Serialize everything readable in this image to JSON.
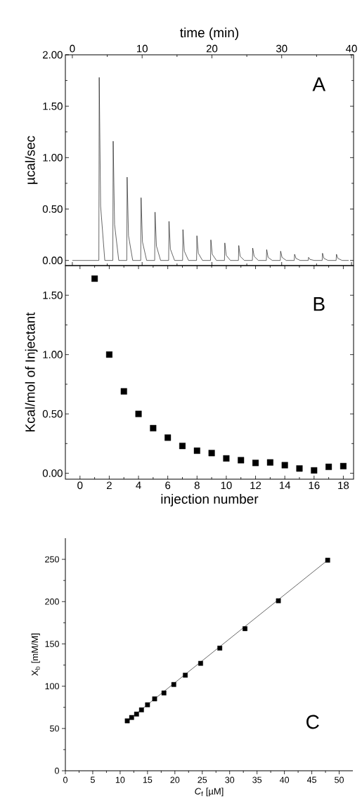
{
  "chart_data": [
    {
      "type": "line",
      "xlabel": "time (min)",
      "ylabel": "µcal/sec",
      "annotations": [
        "A"
      ],
      "color": "#000000",
      "marker": "none",
      "x": [
        0,
        3.8,
        3.85,
        4.05,
        4.65,
        5.8,
        5.85,
        6.05,
        6.65,
        7.8,
        7.85,
        8.05,
        8.65,
        9.8,
        9.85,
        10.05,
        10.65,
        11.8,
        11.85,
        12.05,
        12.65,
        13.8,
        13.85,
        14.05,
        14.65,
        15.8,
        15.85,
        16.05,
        16.65,
        17.8,
        17.85,
        18.05,
        18.65,
        19.8,
        19.85,
        20.05,
        20.65,
        21.8,
        21.85,
        22.05,
        22.65,
        23.8,
        23.85,
        24.05,
        24.65,
        25.8,
        25.85,
        26.05,
        26.65,
        27.8,
        27.85,
        28.05,
        28.65,
        29.8,
        29.85,
        30.05,
        30.65,
        31.8,
        31.85,
        32.05,
        32.65,
        33.8,
        33.85,
        34.05,
        34.65,
        35.8,
        35.85,
        36.05,
        36.65,
        37.8,
        37.85,
        38.05,
        38.65,
        39.6
      ],
      "values": [
        0,
        0,
        1.78,
        0.53,
        0,
        0,
        1.16,
        0.35,
        0,
        0,
        0.81,
        0.24,
        0,
        0,
        0.61,
        0.18,
        0,
        0,
        0.47,
        0.14,
        0,
        0,
        0.38,
        0.11,
        0,
        0,
        0.3,
        0.09,
        0,
        0,
        0.24,
        0.07,
        0,
        0,
        0.2,
        0.06,
        0,
        0,
        0.17,
        0.05,
        0,
        0,
        0.145,
        0.04,
        0,
        0,
        0.12,
        0.04,
        0,
        0,
        0.105,
        0.03,
        0,
        0,
        0.09,
        0.03,
        0,
        0,
        0.06,
        0.02,
        0,
        0,
        0.03,
        0.01,
        0,
        0,
        0.07,
        0.02,
        0,
        0,
        0.06,
        0.02,
        0,
        0
      ],
      "xlim": [
        -1,
        40.3
      ],
      "ylim": [
        -0.05,
        2.0
      ],
      "xticks": [
        0,
        10,
        20,
        30,
        40
      ],
      "yticks": [
        {
          "value": 0,
          "label": "0.00"
        },
        {
          "value": 0.5,
          "label": "0.50"
        },
        {
          "value": 1.0,
          "label": "1.00"
        },
        {
          "value": 1.5,
          "label": "1.50"
        },
        {
          "value": 2.0,
          "label": "2.00"
        }
      ]
    },
    {
      "type": "scatter",
      "xlabel": "injection number",
      "ylabel": "Kcal/mol of Injectant",
      "annotations": [
        "B"
      ],
      "color": "#000000",
      "marker": "square",
      "x": [
        1,
        2,
        3,
        4,
        5,
        6,
        7,
        8,
        9,
        10,
        11,
        12,
        13,
        14,
        15,
        16,
        17,
        18
      ],
      "values": [
        1.64,
        1.0,
        0.69,
        0.5,
        0.38,
        0.3,
        0.23,
        0.19,
        0.17,
        0.125,
        0.11,
        0.087,
        0.091,
        0.068,
        0.04,
        0.024,
        0.054,
        0.06
      ],
      "xlim": [
        -1,
        18.7
      ],
      "ylim": [
        -0.05,
        1.75
      ],
      "xticks": [
        0,
        2,
        4,
        6,
        8,
        10,
        12,
        14,
        16,
        18
      ],
      "yticks": [
        {
          "value": 0,
          "label": "0.00"
        },
        {
          "value": 0.5,
          "label": "0.50"
        },
        {
          "value": 1.0,
          "label": "1.00"
        },
        {
          "value": 1.5,
          "label": "1.50"
        }
      ]
    },
    {
      "type": "scatter",
      "xlabel": "*C*$_{f}$ [µM]",
      "ylabel": "X$_{b}$ [mM/M]",
      "annotations": [
        "C"
      ],
      "series": [
        {
          "type": "scatter",
          "marker": "square",
          "color": "#000000",
          "x": [
            11.3,
            12.1,
            13.0,
            13.9,
            15.0,
            16.3,
            18.0,
            19.8,
            21.9,
            24.7,
            28.2,
            32.8,
            38.9,
            47.9
          ],
          "values": [
            59,
            63,
            67,
            72,
            78,
            85,
            92,
            102,
            113,
            127,
            145,
            168,
            201,
            249
          ]
        },
        {
          "type": "line",
          "marker": "none",
          "color": "#000000",
          "x": [
            11.3,
            47.9
          ],
          "values": [
            59,
            249
          ]
        }
      ],
      "xlim": [
        0,
        52.5
      ],
      "ylim": [
        0,
        275
      ],
      "xticks": [
        0,
        5,
        10,
        15,
        20,
        25,
        30,
        35,
        40,
        45,
        50
      ],
      "yticks": [
        0,
        50,
        100,
        150,
        200,
        250
      ]
    }
  ]
}
